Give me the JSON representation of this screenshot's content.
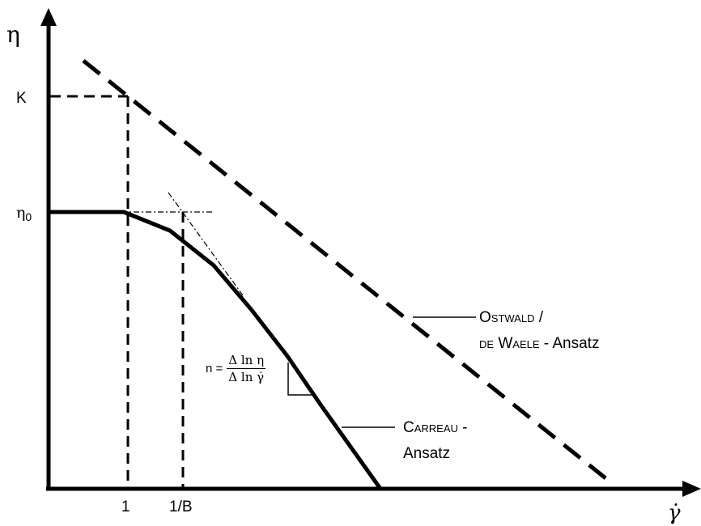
{
  "axes": {
    "y_symbol": "η",
    "x_symbol": "γ̇",
    "y_ticks": {
      "k": "K",
      "eta0": "η",
      "eta0_sub": "0"
    },
    "x_ticks": {
      "one": "1",
      "one_over_b": "1/B"
    }
  },
  "labels": {
    "ostwald_line1_a": "Ostwald",
    "ostwald_line1_b": " /",
    "ostwald_line2_a": "de Waele",
    "ostwald_line2_b": " - Ansatz",
    "carreau_line1_a": "Carreau",
    "carreau_line1_b": " -",
    "carreau_line2": "Ansatz"
  },
  "formula": {
    "lhs": "n =",
    "numerator": "Δ ln η",
    "denominator": "Δ ln γ̇"
  }
}
